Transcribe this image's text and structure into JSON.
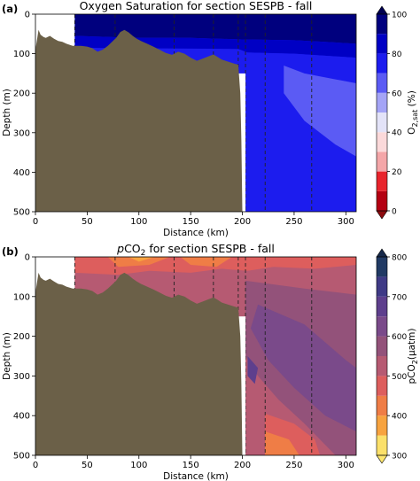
{
  "chart_data": [
    {
      "type": "contour",
      "panel_label": "(a)",
      "title": "Oxygen Saturation for section SESPB - fall",
      "xlabel": "Distance (km)",
      "ylabel": "Depth (m)",
      "xlim": [
        0,
        310
      ],
      "ylim": [
        500,
        0
      ],
      "xticks": [
        0,
        50,
        100,
        150,
        200,
        250,
        300
      ],
      "yticks": [
        0,
        100,
        200,
        300,
        400,
        500
      ],
      "colorbar": {
        "label": "O2,sat (%)",
        "ticks": [
          0,
          20,
          40,
          60,
          80,
          100
        ],
        "levels": [
          0,
          10,
          20,
          30,
          40,
          50,
          60,
          70,
          80,
          90,
          100
        ],
        "colors": [
          "#b40012",
          "#e8242c",
          "#f4a6a8",
          "#fbd9da",
          "#e3e3f8",
          "#a4a4f6",
          "#5b5bf4",
          "#1c1cee",
          "#0000c4",
          "#00007e"
        ],
        "extend_min_color": "#8c0a0e",
        "extend_max_color": "#000050"
      },
      "station_lines_km": [
        38,
        77,
        134,
        172,
        196,
        203,
        222,
        267
      ],
      "bathymetry_color": "#6b6048",
      "contour_fills": [
        {
          "level": 90,
          "color": "#00007e",
          "outline": [
            [
              38,
              0
            ],
            [
              310,
              0
            ],
            [
              310,
              75
            ],
            [
              280,
              70
            ],
            [
              250,
              66
            ],
            [
              200,
              64
            ],
            [
              150,
              60
            ],
            [
              100,
              60
            ],
            [
              38,
              55
            ]
          ]
        },
        {
          "level": 80,
          "color": "#0000c4",
          "outline": [
            [
              38,
              55
            ],
            [
              100,
              60
            ],
            [
              150,
              60
            ],
            [
              200,
              64
            ],
            [
              250,
              66
            ],
            [
              280,
              70
            ],
            [
              310,
              75
            ],
            [
              310,
              110
            ],
            [
              250,
              100
            ],
            [
              205,
              97
            ],
            [
              196,
              88
            ],
            [
              38,
              85
            ]
          ]
        },
        {
          "level": 70,
          "color": "#1c1cee",
          "outline": [
            [
              203,
              97
            ],
            [
              250,
              100
            ],
            [
              310,
              110
            ],
            [
              310,
              500
            ],
            [
              203,
              500
            ]
          ]
        },
        {
          "level": 60,
          "color": "#5b5bf4",
          "outline": [
            [
              240,
              130
            ],
            [
              260,
              150
            ],
            [
              310,
              175
            ],
            [
              310,
              360
            ],
            [
              290,
              330
            ],
            [
              260,
              270
            ],
            [
              240,
              200
            ]
          ]
        }
      ],
      "bathymetry": [
        [
          0,
          90
        ],
        [
          3,
          40
        ],
        [
          5,
          52
        ],
        [
          8,
          58
        ],
        [
          10,
          60
        ],
        [
          14,
          55
        ],
        [
          18,
          62
        ],
        [
          22,
          68
        ],
        [
          26,
          70
        ],
        [
          30,
          75
        ],
        [
          36,
          80
        ],
        [
          44,
          80
        ],
        [
          50,
          82
        ],
        [
          55,
          86
        ],
        [
          60,
          95
        ],
        [
          65,
          90
        ],
        [
          70,
          80
        ],
        [
          74,
          70
        ],
        [
          78,
          60
        ],
        [
          82,
          45
        ],
        [
          86,
          40
        ],
        [
          90,
          46
        ],
        [
          94,
          55
        ],
        [
          98,
          62
        ],
        [
          102,
          68
        ],
        [
          108,
          75
        ],
        [
          114,
          82
        ],
        [
          120,
          90
        ],
        [
          126,
          98
        ],
        [
          132,
          103
        ],
        [
          138,
          95
        ],
        [
          144,
          100
        ],
        [
          150,
          110
        ],
        [
          156,
          118
        ],
        [
          162,
          112
        ],
        [
          168,
          106
        ],
        [
          172,
          102
        ],
        [
          176,
          108
        ],
        [
          180,
          115
        ],
        [
          186,
          120
        ],
        [
          192,
          125
        ],
        [
          196,
          128
        ],
        [
          198,
          200
        ],
        [
          199,
          320
        ],
        [
          200,
          500
        ]
      ]
    },
    {
      "type": "contour",
      "panel_label": "(b)",
      "title": "pCO2 for section SESPB - fall",
      "xlabel": "Distance (km)",
      "ylabel": "Depth (m)",
      "xlim": [
        0,
        310
      ],
      "ylim": [
        500,
        0
      ],
      "xticks": [
        0,
        50,
        100,
        150,
        200,
        250,
        300
      ],
      "yticks": [
        0,
        100,
        200,
        300,
        400,
        500
      ],
      "colorbar": {
        "label": "pCO2(μatm)",
        "ticks": [
          300,
          400,
          500,
          600,
          700,
          800
        ],
        "levels": [
          300,
          350,
          400,
          450,
          500,
          550,
          600,
          650,
          700,
          750,
          800
        ],
        "colors": [
          "#fbe06a",
          "#f7a33f",
          "#ef7d46",
          "#dd5e5d",
          "#b65a72",
          "#93527a",
          "#7a4a8a",
          "#5e3f8d",
          "#3f3a86",
          "#213a64"
        ],
        "extend_min_color": "#fde66e",
        "extend_max_color": "#16294a"
      },
      "station_lines_km": [
        38,
        77,
        134,
        172,
        196,
        203,
        222,
        267
      ],
      "bathymetry_color": "#6b6048",
      "background_color": "#b65a72",
      "contour_fills": [
        {
          "level": 450,
          "color": "#dd5e5d",
          "outline": [
            [
              38,
              0
            ],
            [
              310,
              0
            ],
            [
              310,
              20
            ],
            [
              270,
              30
            ],
            [
              230,
              25
            ],
            [
              205,
              35
            ],
            [
              180,
              30
            ],
            [
              150,
              40
            ],
            [
              110,
              35
            ],
            [
              80,
              45
            ],
            [
              38,
              40
            ]
          ]
        },
        {
          "level": 400,
          "color": "#ef7d46",
          "outline": [
            [
              70,
              0
            ],
            [
              130,
              0
            ],
            [
              110,
              20
            ],
            [
              80,
              25
            ]
          ]
        },
        {
          "level": 400,
          "color": "#ef7d46",
          "outline": [
            [
              140,
              0
            ],
            [
              190,
              0
            ],
            [
              175,
              25
            ],
            [
              150,
              20
            ]
          ]
        },
        {
          "level": 350,
          "color": "#f7a33f",
          "outline": [
            [
              90,
              0
            ],
            [
              115,
              0
            ],
            [
              100,
              12
            ]
          ]
        },
        {
          "level": 550,
          "color": "#93527a",
          "outline": [
            [
              203,
              60
            ],
            [
              260,
              80
            ],
            [
              310,
              95
            ],
            [
              310,
              500
            ],
            [
              290,
              500
            ],
            [
              260,
              420
            ],
            [
              235,
              360
            ],
            [
              215,
              300
            ],
            [
              203,
              250
            ]
          ]
        },
        {
          "level": 600,
          "color": "#7a4a8a",
          "outline": [
            [
              215,
              120
            ],
            [
              260,
              170
            ],
            [
              300,
              260
            ],
            [
              310,
              280
            ],
            [
              310,
              440
            ],
            [
              280,
              400
            ],
            [
              250,
              330
            ],
            [
              225,
              260
            ],
            [
              208,
              180
            ]
          ]
        },
        {
          "level": 650,
          "color": "#5e3f8d",
          "outline": [
            [
              205,
              250
            ],
            [
              215,
              280
            ],
            [
              212,
              320
            ],
            [
              205,
              300
            ]
          ]
        },
        {
          "level": 450,
          "color": "#dd5e5d",
          "outline": [
            [
              222,
              395
            ],
            [
              250,
              420
            ],
            [
              270,
              460
            ],
            [
              275,
              500
            ],
            [
              222,
              500
            ]
          ]
        },
        {
          "level": 400,
          "color": "#ef7d46",
          "outline": [
            [
              222,
              440
            ],
            [
              245,
              460
            ],
            [
              255,
              500
            ],
            [
              222,
              500
            ]
          ]
        }
      ],
      "bathymetry": [
        [
          0,
          90
        ],
        [
          3,
          40
        ],
        [
          5,
          52
        ],
        [
          8,
          58
        ],
        [
          10,
          60
        ],
        [
          14,
          55
        ],
        [
          18,
          62
        ],
        [
          22,
          68
        ],
        [
          26,
          70
        ],
        [
          30,
          75
        ],
        [
          36,
          80
        ],
        [
          44,
          80
        ],
        [
          50,
          82
        ],
        [
          55,
          86
        ],
        [
          60,
          95
        ],
        [
          65,
          90
        ],
        [
          70,
          80
        ],
        [
          74,
          70
        ],
        [
          78,
          60
        ],
        [
          82,
          45
        ],
        [
          86,
          40
        ],
        [
          90,
          46
        ],
        [
          94,
          55
        ],
        [
          98,
          62
        ],
        [
          102,
          68
        ],
        [
          108,
          75
        ],
        [
          114,
          82
        ],
        [
          120,
          90
        ],
        [
          126,
          98
        ],
        [
          132,
          103
        ],
        [
          138,
          95
        ],
        [
          144,
          100
        ],
        [
          150,
          110
        ],
        [
          156,
          118
        ],
        [
          162,
          112
        ],
        [
          168,
          106
        ],
        [
          172,
          102
        ],
        [
          176,
          108
        ],
        [
          180,
          115
        ],
        [
          186,
          120
        ],
        [
          192,
          125
        ],
        [
          196,
          128
        ],
        [
          198,
          200
        ],
        [
          199,
          320
        ],
        [
          200,
          500
        ]
      ]
    }
  ]
}
